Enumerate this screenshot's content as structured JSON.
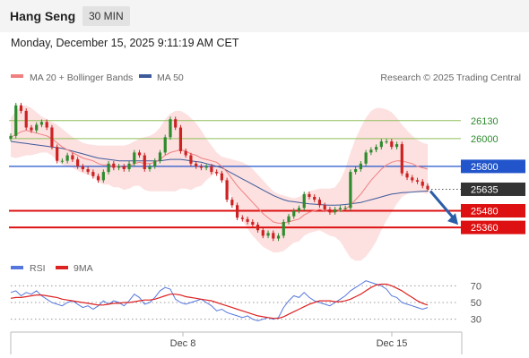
{
  "header": {
    "instrument": "Hang Seng",
    "timeframe": "30 MIN",
    "datetime": "Monday, December 15, 2025 9:11:19 AM CET"
  },
  "legend": {
    "ma20": "MA 20 + Bollinger Bands",
    "ma50": "MA 50",
    "credit": "Research © 2025 Trading Central",
    "rsi": "RSI",
    "ma9": "9MA"
  },
  "colors": {
    "up": "#2e8b2e",
    "down": "#cc2222",
    "bollinger_fill": "#fde0e0",
    "ma20": "#f08080",
    "ma50": "#3c5a9a",
    "resistance": "#8fbf5a",
    "pivot": "#2255cc",
    "support": "#dd1111",
    "current": "#333333",
    "rsi": "#5577dd",
    "rsi_ma": "#dd2222",
    "arrow": "#2a5ea8"
  },
  "chart_data": [
    {
      "type": "candlestick",
      "title": "Hang Seng 30 MIN",
      "ylim": [
        25180,
        26380
      ],
      "x_ticks": [
        "Dec 8",
        "Dec 15"
      ],
      "levels": [
        {
          "value": 26130,
          "label": "26130",
          "role": "resistance"
        },
        {
          "value": 26000,
          "label": "26000",
          "role": "resistance"
        },
        {
          "value": 25800,
          "label": "25800",
          "role": "pivot"
        },
        {
          "value": 25635,
          "label": "25635",
          "role": "current"
        },
        {
          "value": 25480,
          "label": "25480",
          "role": "support"
        },
        {
          "value": 25360,
          "label": "25360",
          "role": "support"
        }
      ],
      "close": [
        26020,
        26240,
        26200,
        26080,
        26060,
        26100,
        26120,
        26080,
        25940,
        25840,
        25840,
        25880,
        25850,
        25800,
        25780,
        25760,
        25730,
        25700,
        25760,
        25820,
        25790,
        25800,
        25780,
        25820,
        25900,
        25880,
        25780,
        25800,
        25840,
        25900,
        26010,
        26140,
        26080,
        25910,
        25880,
        25820,
        25800,
        25790,
        25800,
        25760,
        25750,
        25700,
        25560,
        25520,
        25430,
        25420,
        25400,
        25380,
        25340,
        25300,
        25320,
        25280,
        25300,
        25400,
        25440,
        25480,
        25500,
        25600,
        25580,
        25560,
        25520,
        25490,
        25470,
        25490,
        25500,
        25500,
        25760,
        25780,
        25820,
        25900,
        25920,
        25940,
        25980,
        25980,
        25940,
        25960,
        25750,
        25720,
        25700,
        25690,
        25660,
        25635
      ],
      "ma20": [
        26010,
        26030,
        26050,
        26060,
        26050,
        26040,
        26030,
        26020,
        26000,
        25970,
        25940,
        25920,
        25900,
        25880,
        25860,
        25850,
        25840,
        25820,
        25810,
        25810,
        25800,
        25800,
        25790,
        25800,
        25820,
        25830,
        25820,
        25820,
        25830,
        25850,
        25880,
        25900,
        25910,
        25920,
        25910,
        25890,
        25880,
        25860,
        25850,
        25840,
        25830,
        25800,
        25760,
        25710,
        25660,
        25620,
        25580,
        25540,
        25500,
        25460,
        25430,
        25400,
        25390,
        25390,
        25400,
        25410,
        25420,
        25450,
        25470,
        25480,
        25490,
        25480,
        25470,
        25470,
        25480,
        25490,
        25520,
        25560,
        25600,
        25650,
        25700,
        25740,
        25780,
        25810,
        25830,
        25840,
        25840,
        25830,
        25820,
        25800,
        25790,
        25780
      ],
      "ma50": [
        25980,
        25975,
        25970,
        25965,
        25960,
        25955,
        25950,
        25945,
        25940,
        25935,
        25930,
        25920,
        25910,
        25900,
        25890,
        25880,
        25870,
        25860,
        25855,
        25850,
        25845,
        25840,
        25840,
        25840,
        25840,
        25840,
        25840,
        25840,
        25840,
        25840,
        25845,
        25850,
        25850,
        25850,
        25845,
        25840,
        25835,
        25830,
        25820,
        25810,
        25800,
        25790,
        25770,
        25750,
        25730,
        25710,
        25690,
        25670,
        25650,
        25630,
        25610,
        25590,
        25575,
        25560,
        25550,
        25545,
        25540,
        25535,
        25530,
        25528,
        25525,
        25522,
        25520,
        25520,
        25522,
        25525,
        25530,
        25535,
        25540,
        25550,
        25560,
        25570,
        25580,
        25590,
        25600,
        25605,
        25610,
        25612,
        25615,
        25618,
        25620,
        25622
      ],
      "bollinger_upper": [
        26150,
        26200,
        26230,
        26240,
        26220,
        26190,
        26160,
        26140,
        26120,
        26100,
        26070,
        26040,
        26010,
        25990,
        25970,
        25960,
        25955,
        25950,
        25950,
        25950,
        25950,
        25950,
        25950,
        25960,
        25980,
        26000,
        26010,
        26020,
        26040,
        26080,
        26140,
        26180,
        26200,
        26200,
        26180,
        26150,
        26110,
        26060,
        26000,
        25950,
        25900,
        25870,
        25860,
        25850,
        25840,
        25830,
        25810,
        25780,
        25740,
        25700,
        25660,
        25620,
        25600,
        25590,
        25580,
        25570,
        25580,
        25600,
        25620,
        25630,
        25640,
        25640,
        25640,
        25650,
        25700,
        25780,
        25900,
        26000,
        26080,
        26150,
        26200,
        26220,
        26220,
        26210,
        26190,
        26150,
        26100,
        26060,
        26020,
        25990,
        25970,
        25960
      ],
      "bollinger_lower": [
        25870,
        25860,
        25870,
        25880,
        25880,
        25890,
        25900,
        25900,
        25880,
        25840,
        25810,
        25800,
        25790,
        25770,
        25750,
        25740,
        25725,
        25690,
        25670,
        25670,
        25650,
        25650,
        25630,
        25640,
        25660,
        25660,
        25630,
        25620,
        25620,
        25620,
        25620,
        25620,
        25620,
        25640,
        25640,
        25630,
        25650,
        25660,
        25700,
        25730,
        25760,
        25730,
        25660,
        25570,
        25480,
        25410,
        25350,
        25300,
        25260,
        25220,
        25200,
        25180,
        25180,
        25190,
        25220,
        25250,
        25260,
        25300,
        25320,
        25330,
        25340,
        25320,
        25300,
        25290,
        25260,
        25200,
        25140,
        25120,
        25120,
        25150,
        25200,
        25260,
        25340,
        25410,
        25470,
        25530,
        25580,
        25600,
        25620,
        25610,
        25610,
        25600
      ]
    },
    {
      "type": "line",
      "title": "RSI",
      "ylim": [
        20,
        80
      ],
      "y_ticks": [
        30,
        50,
        70
      ],
      "series": [
        {
          "name": "RSI",
          "values": [
            62,
            64,
            58,
            62,
            60,
            64,
            58,
            54,
            50,
            48,
            46,
            50,
            52,
            48,
            44,
            46,
            42,
            46,
            52,
            48,
            52,
            50,
            46,
            52,
            60,
            56,
            48,
            50,
            56,
            64,
            68,
            66,
            54,
            50,
            48,
            50,
            52,
            54,
            50,
            46,
            40,
            42,
            38,
            36,
            34,
            32,
            34,
            30,
            28,
            30,
            32,
            30,
            32,
            44,
            52,
            58,
            56,
            62,
            56,
            52,
            50,
            48,
            46,
            50,
            54,
            58,
            64,
            68,
            72,
            76,
            74,
            72,
            70,
            66,
            58,
            56,
            50,
            48,
            46,
            44,
            42,
            44
          ]
        },
        {
          "name": "9MA",
          "values": [
            55,
            56,
            56,
            57,
            58,
            59,
            59,
            58,
            57,
            56,
            54,
            53,
            52,
            51,
            50,
            49,
            48,
            47,
            47,
            48,
            49,
            49,
            50,
            50,
            51,
            52,
            53,
            53,
            54,
            56,
            58,
            60,
            60,
            59,
            57,
            56,
            55,
            54,
            53,
            52,
            50,
            48,
            46,
            44,
            42,
            40,
            38,
            36,
            34,
            33,
            32,
            31,
            31,
            33,
            36,
            39,
            42,
            45,
            48,
            50,
            52,
            52,
            52,
            51,
            51,
            52,
            54,
            57,
            60,
            64,
            68,
            71,
            72,
            72,
            70,
            67,
            64,
            60,
            56,
            52,
            49,
            47
          ]
        }
      ]
    }
  ]
}
